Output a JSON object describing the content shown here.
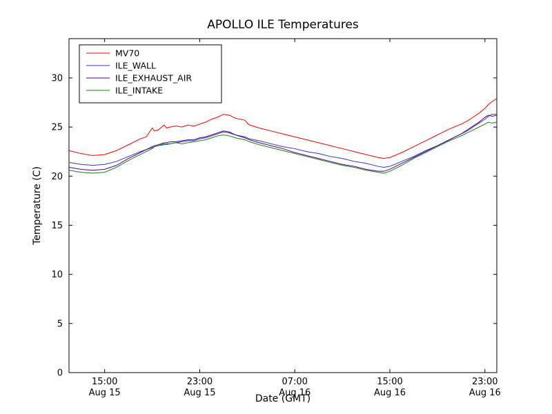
{
  "chart_data": {
    "type": "line",
    "title": "APOLLO ILE Temperatures",
    "xlabel": "Date (GMT)",
    "ylabel": "Temperature (C)",
    "x_unit": "hours since Aug 15 12:00 GMT",
    "xlim": [
      0,
      36
    ],
    "ylim": [
      0,
      34
    ],
    "grid": false,
    "legend_position": "upper left",
    "yticks": [
      0,
      5,
      10,
      15,
      20,
      25,
      30
    ],
    "xticks": [
      {
        "pos": 3,
        "time": "15:00",
        "date": "Aug 15"
      },
      {
        "pos": 11,
        "time": "23:00",
        "date": "Aug 15"
      },
      {
        "pos": 19,
        "time": "07:00",
        "date": "Aug 16"
      },
      {
        "pos": 27,
        "time": "15:00",
        "date": "Aug 16"
      },
      {
        "pos": 35,
        "time": "23:00",
        "date": "Aug 16"
      }
    ],
    "x": [
      0,
      1,
      2,
      3,
      4,
      5,
      6,
      6.5,
      7,
      7.2,
      7.5,
      8,
      8.2,
      8.5,
      9,
      9.5,
      10,
      10.5,
      11,
      11.5,
      12,
      12.5,
      13,
      13.5,
      14,
      14.8,
      15,
      15.2,
      16,
      17,
      18,
      19,
      20,
      21,
      22,
      23,
      24,
      25,
      26,
      26.5,
      27,
      28,
      29,
      30,
      31,
      32,
      33,
      33.5,
      34,
      34.5,
      35,
      35.3,
      35.6,
      36
    ],
    "series": [
      {
        "name": "MV70",
        "color": "#ff0000",
        "values": [
          22.6,
          22.3,
          22.1,
          22.2,
          22.6,
          23.2,
          23.8,
          24.0,
          24.9,
          24.6,
          24.7,
          25.2,
          24.9,
          25.0,
          25.1,
          25.0,
          25.2,
          25.1,
          25.3,
          25.5,
          25.8,
          26.0,
          26.3,
          26.2,
          25.9,
          25.7,
          25.4,
          25.2,
          24.9,
          24.6,
          24.3,
          24.0,
          23.7,
          23.4,
          23.1,
          22.8,
          22.5,
          22.2,
          21.9,
          21.8,
          21.9,
          22.4,
          23.0,
          23.6,
          24.2,
          24.8,
          25.3,
          25.6,
          26.0,
          26.4,
          26.9,
          27.3,
          27.6,
          27.9
        ]
      },
      {
        "name": "ILE_WALL",
        "color": "#3333cc",
        "values": [
          21.4,
          21.2,
          21.1,
          21.2,
          21.5,
          22.0,
          22.5,
          22.7,
          22.9,
          23.0,
          23.1,
          23.2,
          23.3,
          23.3,
          23.4,
          23.5,
          23.6,
          23.6,
          23.8,
          23.9,
          24.1,
          24.3,
          24.5,
          24.4,
          24.2,
          24.0,
          23.9,
          23.8,
          23.6,
          23.3,
          23.0,
          22.8,
          22.5,
          22.3,
          22.0,
          21.8,
          21.5,
          21.3,
          21.0,
          20.9,
          21.0,
          21.5,
          22.0,
          22.6,
          23.1,
          23.7,
          24.3,
          24.6,
          25.0,
          25.4,
          25.8,
          26.1,
          26.3,
          26.3
        ]
      },
      {
        "name": "ILE_EXHAUST_AIR",
        "color": "#550088",
        "values": [
          20.9,
          20.7,
          20.6,
          20.7,
          21.1,
          21.8,
          22.4,
          22.7,
          23.0,
          23.1,
          23.2,
          23.4,
          23.4,
          23.5,
          23.5,
          23.6,
          23.7,
          23.7,
          23.9,
          24.0,
          24.2,
          24.4,
          24.6,
          24.5,
          24.2,
          23.9,
          23.8,
          23.7,
          23.4,
          23.1,
          22.8,
          22.4,
          22.1,
          21.8,
          21.5,
          21.2,
          21.0,
          20.7,
          20.5,
          20.5,
          20.7,
          21.3,
          21.9,
          22.5,
          23.1,
          23.7,
          24.3,
          24.7,
          25.1,
          25.5,
          26.0,
          26.2,
          26.1,
          26.2
        ]
      },
      {
        "name": "ILE_INTAKE",
        "color": "#158015",
        "values": [
          20.6,
          20.4,
          20.3,
          20.4,
          20.9,
          21.6,
          22.2,
          22.5,
          22.8,
          23.0,
          23.1,
          23.3,
          23.2,
          23.3,
          23.4,
          23.3,
          23.4,
          23.5,
          23.6,
          23.7,
          23.9,
          24.1,
          24.2,
          24.1,
          23.9,
          23.7,
          23.6,
          23.5,
          23.2,
          22.9,
          22.6,
          22.3,
          22.0,
          21.7,
          21.4,
          21.1,
          20.9,
          20.6,
          20.4,
          20.3,
          20.5,
          21.1,
          21.8,
          22.4,
          23.0,
          23.6,
          24.1,
          24.4,
          24.7,
          25.0,
          25.3,
          25.5,
          25.4,
          25.5
        ]
      }
    ]
  }
}
